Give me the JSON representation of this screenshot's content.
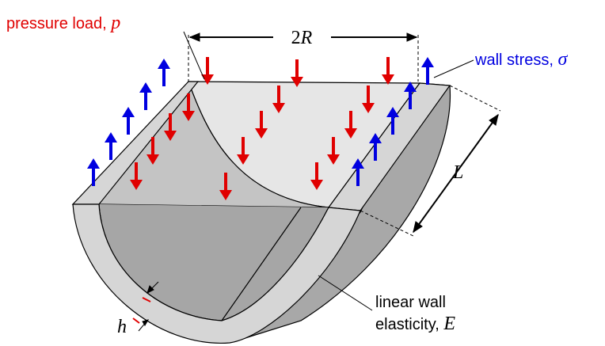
{
  "labels": {
    "pressure_load": {
      "text": "pressure load, ",
      "symbol": "p"
    },
    "diameter": {
      "number": "2",
      "symbol": "R"
    },
    "wall_stress": {
      "text": "wall stress, ",
      "symbol": "σ"
    },
    "length": "L",
    "elasticity": {
      "line1": "linear wall",
      "line2": "elasticity, ",
      "symbol": "E"
    },
    "thickness": "h"
  }
}
